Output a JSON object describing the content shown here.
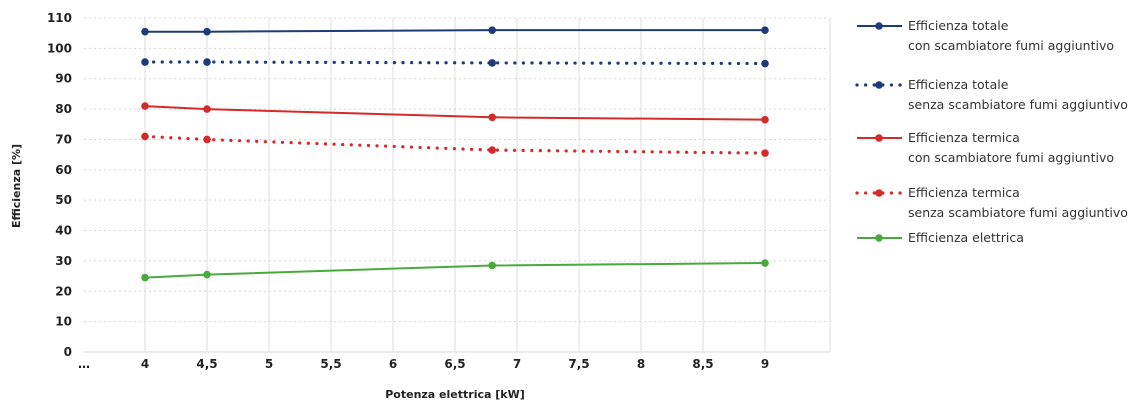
{
  "chart_data": {
    "type": "line",
    "xlabel": "Potenza elettrica [kW]",
    "ylabel": "Efficienza [%]",
    "ylim": [
      0,
      110
    ],
    "y_ticks": [
      "0",
      "10",
      "20",
      "30",
      "40",
      "50",
      "60",
      "70",
      "80",
      "90",
      "100",
      "110"
    ],
    "x_ticks": [
      "…",
      "4",
      "4,5",
      "5",
      "5,5",
      "6",
      "6,5",
      "7",
      "7,5",
      "8",
      "8,5",
      "9"
    ],
    "grid": true,
    "legend_position": "right",
    "series": [
      {
        "name": "Efficienza totale",
        "name_line2": "con scambiatore fumi aggiuntivo",
        "color": "#1f3a78",
        "style": "solid",
        "x": [
          4,
          4.5,
          6.8,
          9
        ],
        "values": [
          105.5,
          105.5,
          106,
          106
        ]
      },
      {
        "name": "Efficienza totale",
        "name_line2": "senza scambiatore fumi aggiuntivo",
        "color": "#1f3a78",
        "style": "dotted",
        "x": [
          4,
          4.5,
          6.8,
          9
        ],
        "values": [
          95.5,
          95.5,
          95.2,
          95
        ]
      },
      {
        "name": "Efficienza termica",
        "name_line2": "con scambiatore fumi aggiuntivo",
        "color": "#d42a2a",
        "style": "solid",
        "x": [
          4,
          4.5,
          6.8,
          9
        ],
        "values": [
          81,
          80,
          77.3,
          76.5
        ]
      },
      {
        "name": "Efficienza termica",
        "name_line2": "senza scambiatore fumi aggiuntivo",
        "color": "#d42a2a",
        "style": "dotted",
        "x": [
          4,
          4.5,
          6.8,
          9
        ],
        "values": [
          71,
          70,
          66.5,
          65.5
        ]
      },
      {
        "name": "Efficienza elettrica",
        "name_line2": "",
        "color": "#4aa93d",
        "style": "solid",
        "x": [
          4,
          4.5,
          6.8,
          9
        ],
        "values": [
          24.5,
          25.5,
          28.5,
          29.3
        ]
      }
    ]
  }
}
